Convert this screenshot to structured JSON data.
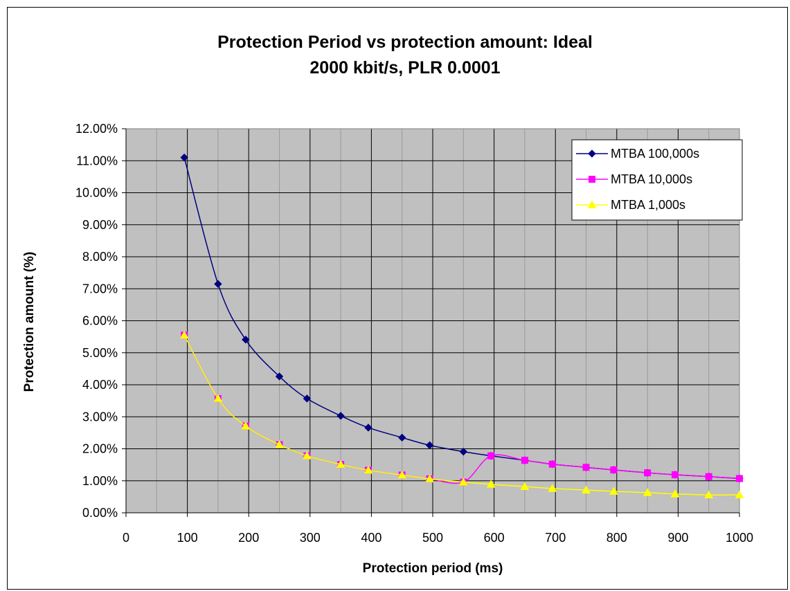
{
  "chart_data": {
    "type": "line",
    "title": "Protection Period vs protection amount: Ideal",
    "subtitle": "2000 kbit/s, PLR 0.0001",
    "xlabel": "Protection period (ms)",
    "ylabel": "Protection amount (%)",
    "xlim": [
      0,
      1000
    ],
    "ylim": [
      0,
      12
    ],
    "x_ticks": [
      0,
      100,
      200,
      300,
      400,
      500,
      600,
      700,
      800,
      900,
      1000
    ],
    "x_tick_labels": [
      "0",
      "100",
      "200",
      "300",
      "400",
      "500",
      "600",
      "700",
      "800",
      "900",
      "1000"
    ],
    "y_ticks": [
      0,
      1,
      2,
      3,
      4,
      5,
      6,
      7,
      8,
      9,
      10,
      11,
      12
    ],
    "y_tick_labels": [
      "0.00%",
      "1.00%",
      "2.00%",
      "3.00%",
      "4.00%",
      "5.00%",
      "6.00%",
      "7.00%",
      "8.00%",
      "9.00%",
      "10.00%",
      "11.00%",
      "12.00%"
    ],
    "grid": true,
    "legend_position": "top-right",
    "plot_background": "#c0c0c0",
    "x": [
      95,
      150,
      195,
      250,
      295,
      350,
      395,
      450,
      495,
      550,
      595,
      650,
      695,
      750,
      795,
      850,
      895,
      950,
      1000
    ],
    "series": [
      {
        "name": "MTBA 100,000s",
        "color": "#000080",
        "marker": "diamond",
        "values": [
          11.1,
          7.15,
          5.41,
          4.26,
          3.57,
          3.03,
          2.66,
          2.35,
          2.11,
          1.91,
          1.78,
          1.64,
          1.52,
          1.42,
          1.34,
          1.25,
          1.19,
          1.13,
          1.07
        ]
      },
      {
        "name": "MTBA 10,000s",
        "color": "#ff00ff",
        "marker": "square",
        "values": [
          5.55,
          3.57,
          2.71,
          2.13,
          1.78,
          1.51,
          1.33,
          1.18,
          1.06,
          0.96,
          1.78,
          1.64,
          1.52,
          1.42,
          1.34,
          1.25,
          1.19,
          1.13,
          1.07
        ]
      },
      {
        "name": "MTBA 1,000s",
        "color": "#ffff00",
        "marker": "triangle",
        "values": [
          5.55,
          3.57,
          2.71,
          2.13,
          1.78,
          1.51,
          1.33,
          1.18,
          1.06,
          0.96,
          0.89,
          0.82,
          0.76,
          0.71,
          0.67,
          0.63,
          0.59,
          0.56,
          0.56
        ]
      }
    ]
  }
}
